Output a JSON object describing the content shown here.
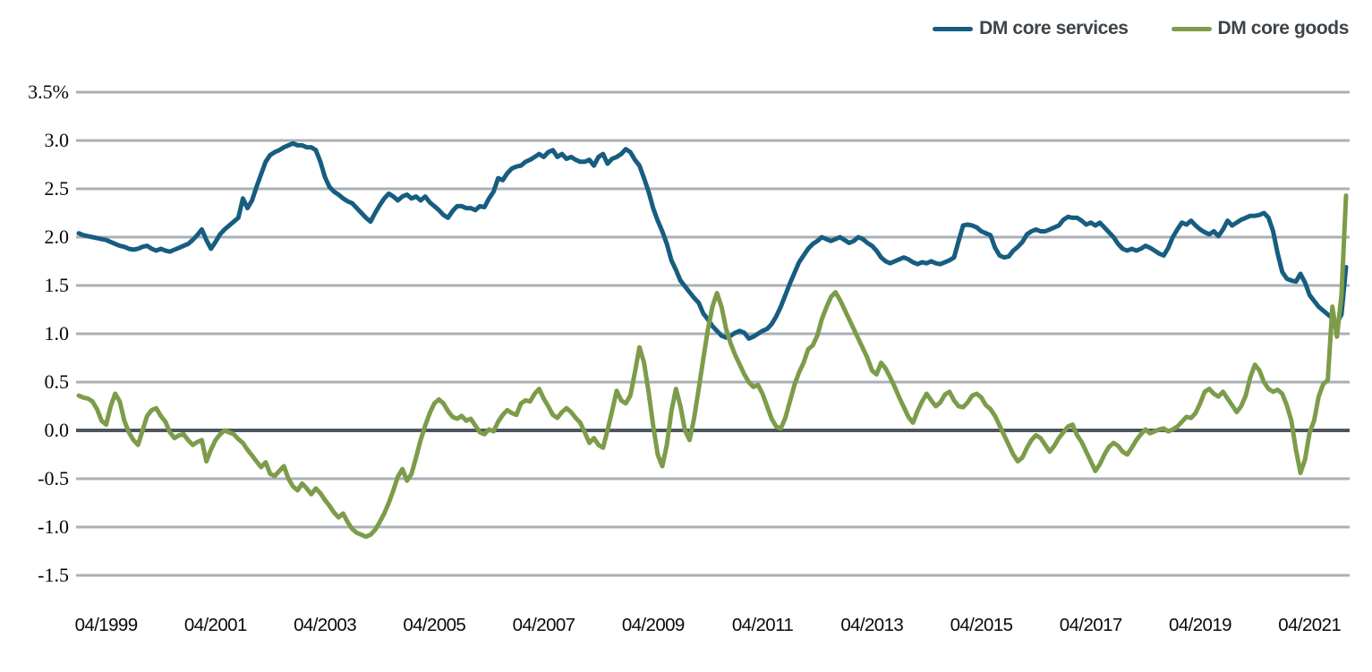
{
  "figure": {
    "background": "#ffffff",
    "legend_position": "top-right"
  },
  "colors": {
    "services_line": "#175d80",
    "goods_line": "#7d9c4a",
    "gridline": "#a9b0b6",
    "zero_line": "#4e565d",
    "axis_text": "#0a0a0a",
    "legend_text": "#3d4449"
  },
  "chart_data": {
    "type": "line",
    "title": "",
    "xlabel": "",
    "ylabel": "",
    "unit": "%",
    "grid": "horizontal",
    "legend_position": "top-right",
    "x_frequency": "monthly",
    "x_start": "1998-10",
    "x_end": "2021-12",
    "x_tick_labels": [
      "04/1999",
      "04/2001",
      "04/2003",
      "04/2005",
      "04/2007",
      "04/2009",
      "04/2011",
      "04/2013",
      "04/2015",
      "04/2017",
      "04/2019",
      "04/2021"
    ],
    "x_tick_indices": [
      6,
      30,
      54,
      78,
      102,
      126,
      150,
      174,
      198,
      222,
      246,
      270
    ],
    "ylim": [
      -1.5,
      3.5
    ],
    "y_ticks": [
      3.5,
      3.0,
      2.5,
      2.0,
      1.5,
      1.0,
      0.5,
      0.0,
      -0.5,
      -1.0,
      -1.5
    ],
    "y_tick_labels": [
      "3.5%",
      "3.0",
      "2.5",
      "2.0",
      "1.5",
      "1.0",
      "0.5",
      "0.0",
      "-0.5",
      "-1.0",
      "-1.5"
    ],
    "series": [
      {
        "name": "DM core services",
        "color": "#175d80",
        "values": [
          2.04,
          2.02,
          2.01,
          2.0,
          1.99,
          1.98,
          1.97,
          1.95,
          1.93,
          1.91,
          1.9,
          1.88,
          1.87,
          1.88,
          1.9,
          1.91,
          1.88,
          1.86,
          1.88,
          1.86,
          1.85,
          1.87,
          1.89,
          1.91,
          1.93,
          1.97,
          2.02,
          2.08,
          1.97,
          1.88,
          1.95,
          2.03,
          2.08,
          2.12,
          2.16,
          2.2,
          2.4,
          2.3,
          2.38,
          2.52,
          2.65,
          2.78,
          2.85,
          2.88,
          2.9,
          2.93,
          2.95,
          2.97,
          2.95,
          2.95,
          2.93,
          2.93,
          2.9,
          2.78,
          2.62,
          2.52,
          2.47,
          2.44,
          2.4,
          2.37,
          2.35,
          2.3,
          2.25,
          2.2,
          2.16,
          2.25,
          2.33,
          2.4,
          2.45,
          2.42,
          2.38,
          2.42,
          2.44,
          2.4,
          2.42,
          2.38,
          2.42,
          2.36,
          2.32,
          2.28,
          2.23,
          2.2,
          2.27,
          2.32,
          2.32,
          2.3,
          2.3,
          2.28,
          2.32,
          2.31,
          2.4,
          2.47,
          2.61,
          2.59,
          2.66,
          2.71,
          2.73,
          2.74,
          2.78,
          2.8,
          2.83,
          2.86,
          2.83,
          2.88,
          2.9,
          2.83,
          2.86,
          2.81,
          2.83,
          2.8,
          2.78,
          2.78,
          2.8,
          2.74,
          2.83,
          2.86,
          2.76,
          2.81,
          2.83,
          2.86,
          2.91,
          2.88,
          2.8,
          2.74,
          2.61,
          2.47,
          2.3,
          2.17,
          2.06,
          1.93,
          1.76,
          1.66,
          1.55,
          1.49,
          1.43,
          1.37,
          1.32,
          1.21,
          1.15,
          1.08,
          1.03,
          0.98,
          0.96,
          0.98,
          1.01,
          1.03,
          1.01,
          0.95,
          0.97,
          1.0,
          1.03,
          1.05,
          1.1,
          1.18,
          1.28,
          1.4,
          1.52,
          1.63,
          1.74,
          1.81,
          1.88,
          1.93,
          1.96,
          2.0,
          1.98,
          1.96,
          1.98,
          2.0,
          1.97,
          1.94,
          1.96,
          2.0,
          1.98,
          1.94,
          1.91,
          1.86,
          1.79,
          1.75,
          1.73,
          1.75,
          1.77,
          1.79,
          1.77,
          1.74,
          1.72,
          1.74,
          1.73,
          1.75,
          1.73,
          1.72,
          1.74,
          1.76,
          1.79,
          1.96,
          2.12,
          2.13,
          2.12,
          2.1,
          2.06,
          2.04,
          2.02,
          1.89,
          1.81,
          1.79,
          1.8,
          1.86,
          1.9,
          1.95,
          2.03,
          2.06,
          2.08,
          2.06,
          2.06,
          2.08,
          2.1,
          2.12,
          2.18,
          2.21,
          2.2,
          2.2,
          2.17,
          2.13,
          2.15,
          2.12,
          2.15,
          2.1,
          2.05,
          2.0,
          1.93,
          1.88,
          1.86,
          1.88,
          1.86,
          1.88,
          1.91,
          1.89,
          1.86,
          1.83,
          1.81,
          1.89,
          2.0,
          2.08,
          2.15,
          2.13,
          2.17,
          2.12,
          2.08,
          2.05,
          2.03,
          2.06,
          2.01,
          2.08,
          2.17,
          2.12,
          2.15,
          2.18,
          2.2,
          2.22,
          2.22,
          2.23,
          2.25,
          2.2,
          2.06,
          1.83,
          1.64,
          1.57,
          1.55,
          1.54,
          1.62,
          1.53,
          1.4,
          1.34,
          1.28,
          1.24,
          1.2,
          1.16,
          1.11,
          1.2,
          1.69
        ]
      },
      {
        "name": "DM core goods",
        "color": "#7d9c4a",
        "values": [
          0.36,
          0.34,
          0.33,
          0.3,
          0.22,
          0.1,
          0.06,
          0.25,
          0.38,
          0.3,
          0.1,
          -0.02,
          -0.1,
          -0.15,
          0.0,
          0.15,
          0.21,
          0.23,
          0.15,
          0.09,
          -0.02,
          -0.08,
          -0.05,
          -0.04,
          -0.1,
          -0.15,
          -0.12,
          -0.1,
          -0.32,
          -0.2,
          -0.1,
          -0.04,
          0.0,
          -0.02,
          -0.04,
          -0.09,
          -0.13,
          -0.2,
          -0.26,
          -0.32,
          -0.38,
          -0.33,
          -0.45,
          -0.47,
          -0.42,
          -0.37,
          -0.5,
          -0.58,
          -0.62,
          -0.55,
          -0.6,
          -0.66,
          -0.6,
          -0.65,
          -0.72,
          -0.78,
          -0.85,
          -0.9,
          -0.86,
          -0.95,
          -1.02,
          -1.06,
          -1.08,
          -1.1,
          -1.08,
          -1.03,
          -0.95,
          -0.86,
          -0.75,
          -0.62,
          -0.48,
          -0.4,
          -0.52,
          -0.45,
          -0.28,
          -0.1,
          0.05,
          0.18,
          0.28,
          0.32,
          0.28,
          0.2,
          0.14,
          0.12,
          0.15,
          0.1,
          0.12,
          0.05,
          -0.02,
          -0.04,
          0.01,
          -0.01,
          0.09,
          0.16,
          0.21,
          0.18,
          0.16,
          0.28,
          0.31,
          0.3,
          0.38,
          0.43,
          0.33,
          0.25,
          0.16,
          0.13,
          0.19,
          0.23,
          0.19,
          0.13,
          0.08,
          -0.02,
          -0.13,
          -0.08,
          -0.15,
          -0.18,
          0.0,
          0.2,
          0.41,
          0.31,
          0.28,
          0.36,
          0.6,
          0.86,
          0.7,
          0.4,
          0.05,
          -0.25,
          -0.37,
          -0.15,
          0.2,
          0.43,
          0.25,
          0.0,
          -0.1,
          0.13,
          0.43,
          0.74,
          1.04,
          1.28,
          1.42,
          1.28,
          1.05,
          0.9,
          0.78,
          0.68,
          0.58,
          0.5,
          0.45,
          0.47,
          0.38,
          0.25,
          0.12,
          0.04,
          0.02,
          0.13,
          0.3,
          0.47,
          0.6,
          0.7,
          0.84,
          0.88,
          0.98,
          1.15,
          1.27,
          1.38,
          1.43,
          1.35,
          1.25,
          1.15,
          1.05,
          0.95,
          0.85,
          0.75,
          0.62,
          0.58,
          0.7,
          0.64,
          0.55,
          0.45,
          0.34,
          0.24,
          0.14,
          0.08,
          0.2,
          0.3,
          0.38,
          0.31,
          0.25,
          0.29,
          0.37,
          0.4,
          0.31,
          0.25,
          0.24,
          0.29,
          0.36,
          0.38,
          0.34,
          0.26,
          0.22,
          0.15,
          0.05,
          -0.05,
          -0.15,
          -0.25,
          -0.32,
          -0.28,
          -0.18,
          -0.1,
          -0.05,
          -0.08,
          -0.15,
          -0.22,
          -0.16,
          -0.08,
          -0.02,
          0.04,
          0.06,
          -0.05,
          -0.12,
          -0.22,
          -0.32,
          -0.42,
          -0.35,
          -0.25,
          -0.17,
          -0.13,
          -0.16,
          -0.22,
          -0.25,
          -0.18,
          -0.1,
          -0.04,
          0.01,
          -0.03,
          -0.01,
          0.01,
          0.02,
          -0.01,
          0.01,
          0.04,
          0.09,
          0.14,
          0.13,
          0.18,
          0.28,
          0.4,
          0.43,
          0.38,
          0.35,
          0.4,
          0.33,
          0.26,
          0.19,
          0.25,
          0.36,
          0.55,
          0.68,
          0.62,
          0.5,
          0.43,
          0.4,
          0.42,
          0.38,
          0.26,
          0.1,
          -0.2,
          -0.44,
          -0.3,
          -0.02,
          0.1,
          0.35,
          0.48,
          0.52,
          1.28,
          0.97,
          1.4,
          2.43
        ]
      }
    ]
  }
}
